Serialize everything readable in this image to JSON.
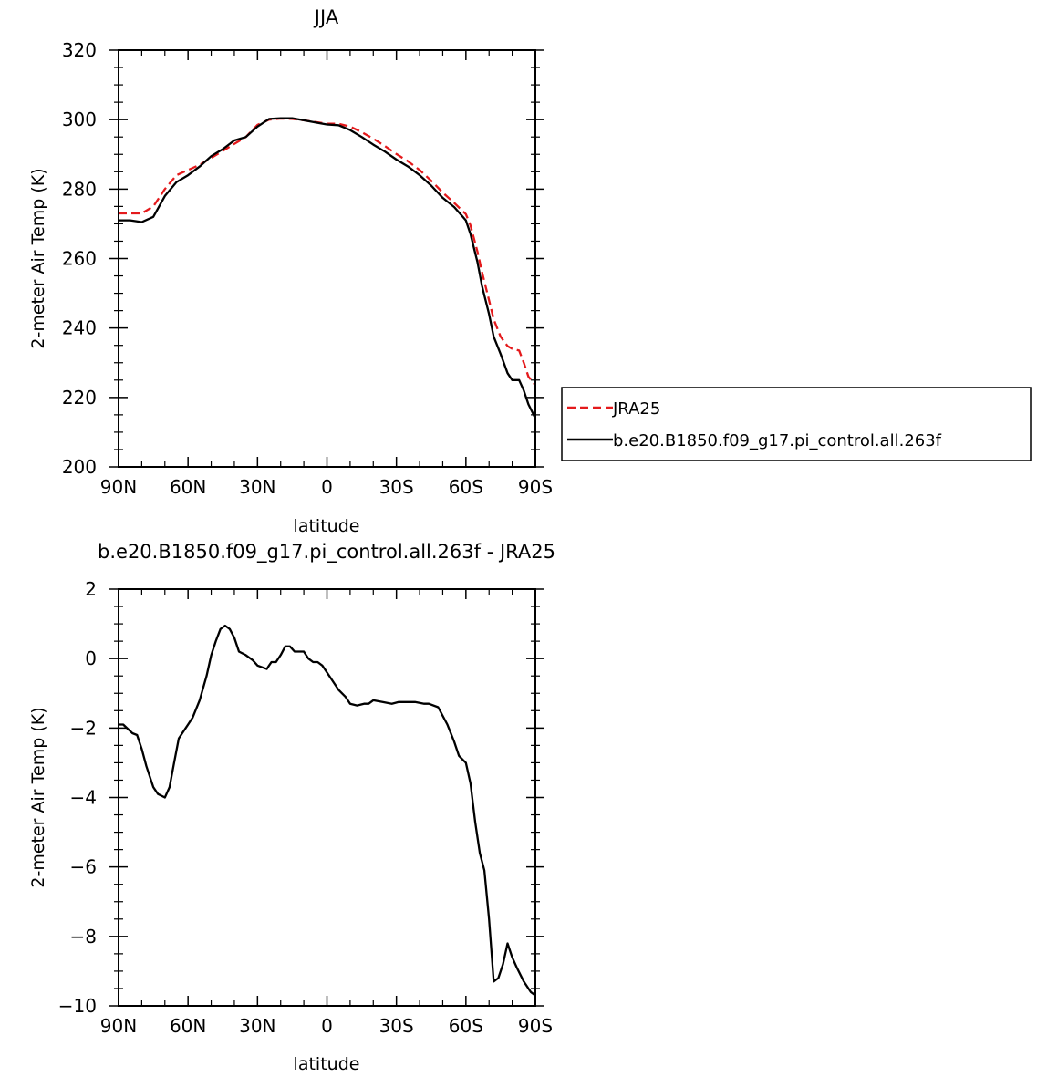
{
  "chart_data": [
    {
      "type": "line",
      "title": "JJA",
      "xlabel": "latitude",
      "ylabel": "2-meter Air Temp (K)",
      "xlim": [
        90,
        -90
      ],
      "ylim": [
        200,
        320
      ],
      "xticks": [
        {
          "value": 90,
          "label": "90N"
        },
        {
          "value": 60,
          "label": "60N"
        },
        {
          "value": 30,
          "label": "30N"
        },
        {
          "value": 0,
          "label": "0"
        },
        {
          "value": -30,
          "label": "30S"
        },
        {
          "value": -60,
          "label": "60S"
        },
        {
          "value": -90,
          "label": "90S"
        }
      ],
      "yticks": [
        {
          "value": 200,
          "label": "200"
        },
        {
          "value": 220,
          "label": "220"
        },
        {
          "value": 240,
          "label": "240"
        },
        {
          "value": 260,
          "label": "260"
        },
        {
          "value": 280,
          "label": "280"
        },
        {
          "value": 300,
          "label": "300"
        },
        {
          "value": 320,
          "label": "320"
        }
      ],
      "legend_position": "right",
      "series": [
        {
          "name": "JRA25",
          "color": "#e41a1c",
          "dash": "dashed",
          "x": [
            90,
            85,
            80,
            75,
            70,
            65,
            60,
            55,
            50,
            45,
            40,
            35,
            30,
            25,
            20,
            15,
            10,
            5,
            0,
            -5,
            -10,
            -15,
            -20,
            -25,
            -30,
            -35,
            -40,
            -45,
            -50,
            -55,
            -60,
            -62,
            -65,
            -67,
            -70,
            -72,
            -75,
            -78,
            -80,
            -83,
            -85,
            -87,
            -90
          ],
          "y": [
            273,
            273,
            273,
            275,
            280,
            284,
            285.5,
            287,
            289,
            291,
            293,
            295,
            298.5,
            300,
            300.3,
            300.2,
            299.8,
            299.3,
            298.8,
            298.8,
            298,
            296.4,
            294.5,
            292.4,
            290.1,
            288,
            285.5,
            282.4,
            279,
            276,
            272.8,
            269.5,
            262,
            256,
            248,
            242.5,
            237.5,
            234.8,
            234,
            233.5,
            230,
            226,
            223.5
          ]
        },
        {
          "name": "b.e20.B1850.f09_g17.pi_control.all.263f",
          "color": "#000000",
          "dash": "solid",
          "x": [
            90,
            85,
            80,
            75,
            70,
            65,
            60,
            55,
            50,
            45,
            40,
            35,
            30,
            25,
            20,
            15,
            10,
            5,
            0,
            -5,
            -10,
            -15,
            -20,
            -25,
            -30,
            -35,
            -40,
            -45,
            -50,
            -55,
            -60,
            -62,
            -65,
            -67,
            -70,
            -72,
            -75,
            -78,
            -80,
            -83,
            -85,
            -87,
            -90
          ],
          "y": [
            271,
            271,
            270.5,
            272,
            278,
            282,
            284,
            286.5,
            289.5,
            291.5,
            294,
            295,
            298,
            300.2,
            300.4,
            300.4,
            299.8,
            299.2,
            298.6,
            298.4,
            297,
            295,
            292.8,
            290.8,
            288.5,
            286.5,
            284,
            281,
            277.5,
            274.8,
            271,
            267,
            259,
            252,
            244,
            237.5,
            232.5,
            227,
            225,
            225,
            222,
            218,
            214
          ]
        }
      ]
    },
    {
      "type": "line",
      "title": "b.e20.B1850.f09_g17.pi_control.all.263f  -  JRA25",
      "xlabel": "latitude",
      "ylabel": "2-meter Air Temp (K)",
      "xlim": [
        90,
        -90
      ],
      "ylim": [
        -10,
        2
      ],
      "xticks": [
        {
          "value": 90,
          "label": "90N"
        },
        {
          "value": 60,
          "label": "60N"
        },
        {
          "value": 30,
          "label": "30N"
        },
        {
          "value": 0,
          "label": "0"
        },
        {
          "value": -30,
          "label": "30S"
        },
        {
          "value": -60,
          "label": "60S"
        },
        {
          "value": -90,
          "label": "90S"
        }
      ],
      "yticks": [
        {
          "value": -10,
          "label": "−10"
        },
        {
          "value": -8,
          "label": "−8"
        },
        {
          "value": -6,
          "label": "−6"
        },
        {
          "value": -4,
          "label": "−4"
        },
        {
          "value": -2,
          "label": "−2"
        },
        {
          "value": 0,
          "label": "0"
        },
        {
          "value": 2,
          "label": "2"
        }
      ],
      "series": [
        {
          "color": "#000000",
          "dash": "solid",
          "x": [
            90,
            88,
            84,
            82,
            80,
            78,
            75,
            73,
            70,
            68,
            66,
            64,
            62,
            60,
            58,
            55,
            52,
            50,
            48,
            46,
            44,
            42,
            40,
            38,
            35,
            32,
            30,
            28,
            26,
            25,
            24,
            22,
            20,
            18,
            16,
            14,
            12,
            10,
            8,
            6,
            4,
            2,
            0,
            -2,
            -5,
            -8,
            -10,
            -13,
            -16,
            -18,
            -20,
            -24,
            -28,
            -31,
            -34,
            -38,
            -42,
            -44,
            -48,
            -52,
            -55,
            -57,
            -60,
            -62,
            -64,
            -66,
            -68,
            -70,
            -72,
            -74,
            -76,
            -78,
            -80,
            -82,
            -85,
            -88,
            -90
          ],
          "y": [
            -1.9,
            -1.9,
            -2.15,
            -2.2,
            -2.6,
            -3.1,
            -3.7,
            -3.9,
            -4.0,
            -3.7,
            -3.0,
            -2.3,
            -2.1,
            -1.9,
            -1.7,
            -1.2,
            -0.5,
            0.1,
            0.5,
            0.85,
            0.95,
            0.85,
            0.6,
            0.2,
            0.1,
            -0.05,
            -0.2,
            -0.25,
            -0.3,
            -0.2,
            -0.1,
            -0.1,
            0.1,
            0.35,
            0.35,
            0.2,
            0.2,
            0.2,
            0.0,
            -0.1,
            -0.1,
            -0.2,
            -0.4,
            -0.6,
            -0.9,
            -1.1,
            -1.3,
            -1.35,
            -1.3,
            -1.3,
            -1.2,
            -1.25,
            -1.3,
            -1.25,
            -1.25,
            -1.25,
            -1.3,
            -1.3,
            -1.4,
            -1.9,
            -2.4,
            -2.8,
            -3.0,
            -3.6,
            -4.7,
            -5.6,
            -6.1,
            -7.5,
            -9.3,
            -9.2,
            -8.8,
            -8.2,
            -8.6,
            -8.9,
            -9.3,
            -9.6,
            -9.7
          ]
        }
      ]
    }
  ]
}
